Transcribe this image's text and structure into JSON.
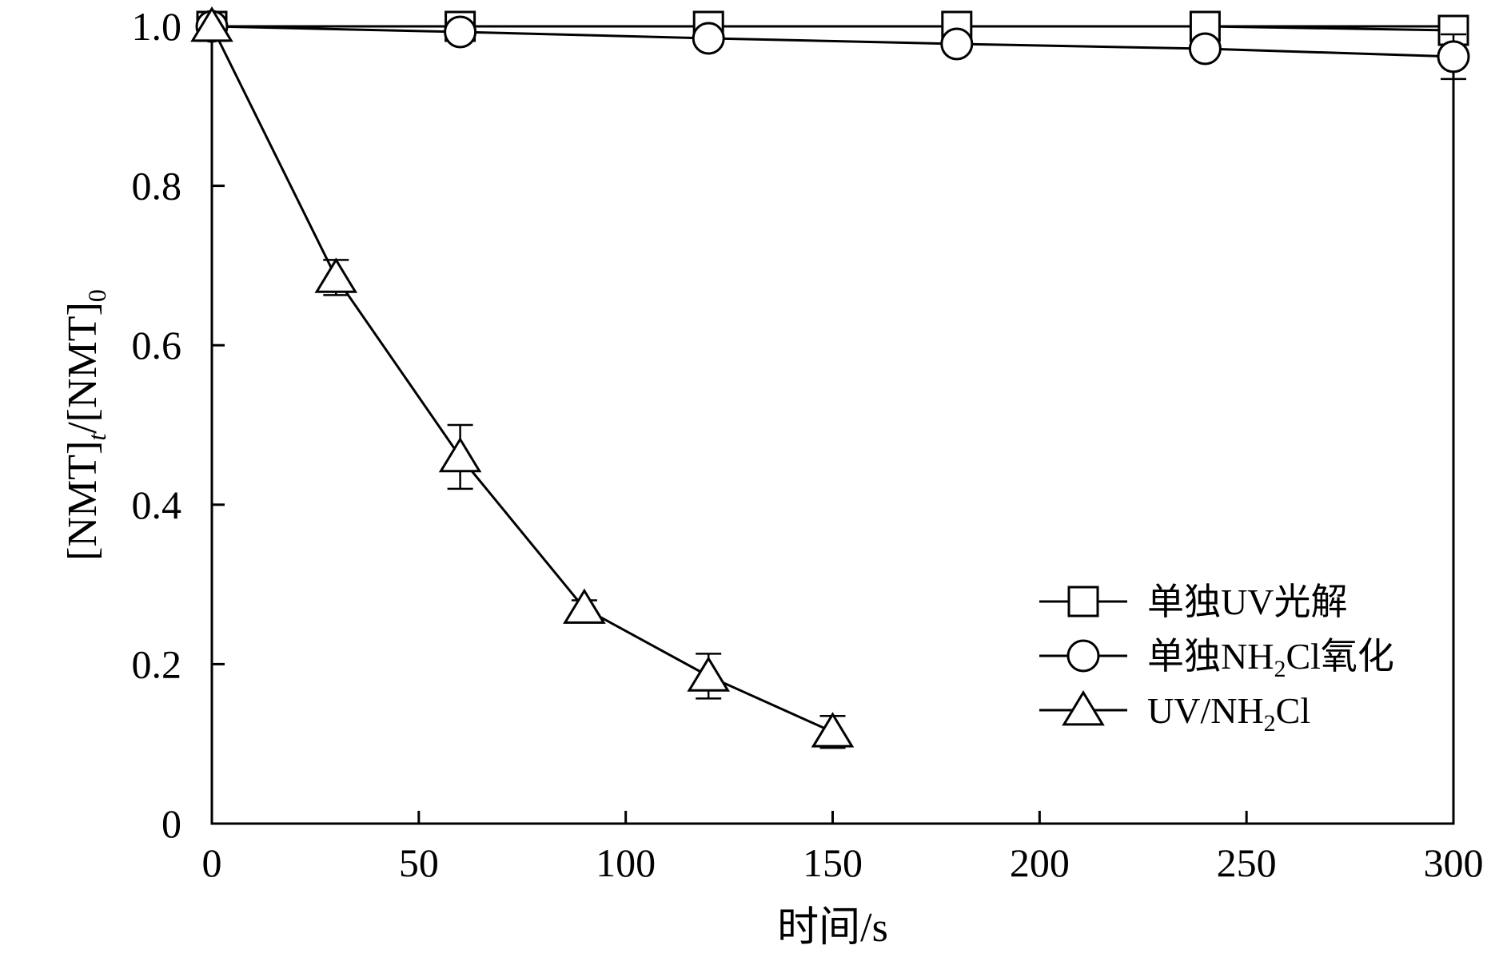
{
  "chart_data": {
    "type": "line",
    "xlabel": "时间/s",
    "ylabel": {
      "parts": [
        "[NMT]",
        "t",
        "/[NMT]",
        "0"
      ]
    },
    "xlim": [
      0,
      300
    ],
    "ylim": [
      0,
      1.0
    ],
    "xticks": [
      0,
      50,
      100,
      150,
      200,
      250,
      300
    ],
    "xtick_labels": [
      "0",
      "50",
      "100",
      "150",
      "200",
      "250",
      "300"
    ],
    "yticks": [
      0,
      0.2,
      0.4,
      0.6,
      0.8,
      1.0
    ],
    "ytick_labels": [
      "0",
      "0.2",
      "0.4",
      "0.6",
      "0.8",
      "1.0"
    ],
    "grid": false,
    "legend_position": "bottom-right",
    "series": [
      {
        "name": "单独UV光解",
        "name_parts": [
          "单独UV光解"
        ],
        "marker": "square",
        "x": [
          0,
          60,
          120,
          180,
          240,
          300
        ],
        "y": [
          1.0,
          1.0,
          1.0,
          1.0,
          1.0,
          0.995
        ],
        "err": [
          0,
          0.005,
          0.005,
          0.01,
          0.005,
          0.01
        ]
      },
      {
        "name": "单独NH2Cl氧化",
        "name_parts": [
          "单独NH",
          "2",
          "Cl氧化"
        ],
        "marker": "circle",
        "x": [
          0,
          60,
          120,
          180,
          240,
          300
        ],
        "y": [
          1.0,
          0.993,
          0.985,
          0.978,
          0.972,
          0.962
        ],
        "err": [
          0,
          0.005,
          0.008,
          0.01,
          0.006,
          0.028
        ]
      },
      {
        "name": "UV/NH2Cl",
        "name_parts": [
          "UV/NH",
          "2",
          "Cl"
        ],
        "marker": "triangle",
        "x": [
          0,
          30,
          60,
          90,
          120,
          150
        ],
        "y": [
          1.0,
          0.685,
          0.46,
          0.27,
          0.185,
          0.115
        ],
        "err": [
          0,
          0.022,
          0.04,
          0.01,
          0.028,
          0.02
        ]
      }
    ]
  }
}
